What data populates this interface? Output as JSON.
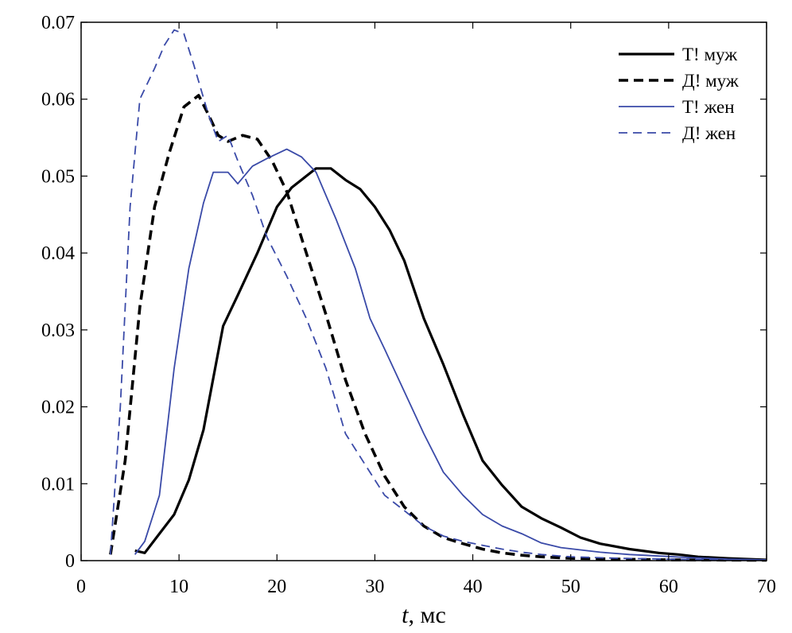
{
  "chart_data": {
    "type": "line",
    "xlabel_var": "t",
    "xlabel_unit": ", мс",
    "ylabel": "",
    "xlim": [
      0,
      70
    ],
    "ylim": [
      0,
      0.07
    ],
    "x_ticks": [
      "0",
      "10",
      "20",
      "30",
      "40",
      "50",
      "60",
      "70"
    ],
    "y_ticks": [
      "0",
      "0.01",
      "0.02",
      "0.03",
      "0.04",
      "0.05",
      "0.06",
      "0.07"
    ],
    "grid": false,
    "legend_position": "top-right",
    "series": [
      {
        "name": "Т! муж",
        "color": "#000000",
        "style": "solid-thick",
        "points": [
          [
            5.5,
            0.0013
          ],
          [
            6.5,
            0.001
          ],
          [
            8,
            0.0035
          ],
          [
            9.5,
            0.006
          ],
          [
            11,
            0.0105
          ],
          [
            12.5,
            0.017
          ],
          [
            14.5,
            0.0305
          ],
          [
            16,
            0.0345
          ],
          [
            18,
            0.04
          ],
          [
            20,
            0.046
          ],
          [
            21.5,
            0.0485
          ],
          [
            23,
            0.05
          ],
          [
            24,
            0.051
          ],
          [
            25.5,
            0.051
          ],
          [
            27,
            0.0495
          ],
          [
            28.5,
            0.0483
          ],
          [
            30,
            0.046
          ],
          [
            31.5,
            0.043
          ],
          [
            33,
            0.039
          ],
          [
            35,
            0.0315
          ],
          [
            37,
            0.0255
          ],
          [
            39,
            0.019
          ],
          [
            41,
            0.013
          ],
          [
            43,
            0.0098
          ],
          [
            45,
            0.007
          ],
          [
            47,
            0.0055
          ],
          [
            49,
            0.0043
          ],
          [
            51,
            0.003
          ],
          [
            53,
            0.0022
          ],
          [
            56,
            0.0015
          ],
          [
            59,
            0.001
          ],
          [
            61,
            0.0008
          ],
          [
            63,
            0.0005
          ],
          [
            66,
            0.0003
          ],
          [
            70,
            0.0001
          ]
        ]
      },
      {
        "name": "Д! муж",
        "color": "#000000",
        "style": "dashed-thick",
        "points": [
          [
            3,
            0.0008
          ],
          [
            4.5,
            0.013
          ],
          [
            6,
            0.033
          ],
          [
            7.5,
            0.046
          ],
          [
            9,
            0.053
          ],
          [
            10.5,
            0.059
          ],
          [
            12,
            0.0605
          ],
          [
            13,
            0.058
          ],
          [
            14,
            0.0553
          ],
          [
            15,
            0.0545
          ],
          [
            16.5,
            0.0553
          ],
          [
            18,
            0.0548
          ],
          [
            19.5,
            0.052
          ],
          [
            21,
            0.048
          ],
          [
            23,
            0.04
          ],
          [
            25,
            0.032
          ],
          [
            27,
            0.0235
          ],
          [
            29,
            0.0165
          ],
          [
            31,
            0.011
          ],
          [
            33,
            0.007
          ],
          [
            35,
            0.0045
          ],
          [
            37,
            0.003
          ],
          [
            39,
            0.0022
          ],
          [
            41,
            0.0015
          ],
          [
            43,
            0.001
          ],
          [
            45,
            0.0007
          ],
          [
            47,
            0.0005
          ],
          [
            50,
            0.0003
          ],
          [
            55,
            0.0002
          ],
          [
            60,
            0.0001
          ],
          [
            70,
            5e-05
          ]
        ]
      },
      {
        "name": "Т! жен",
        "color": "#3a4aa8",
        "style": "solid-thin",
        "points": [
          [
            5.5,
            0.0008
          ],
          [
            6.5,
            0.0025
          ],
          [
            8,
            0.0085
          ],
          [
            9.5,
            0.025
          ],
          [
            11,
            0.038
          ],
          [
            12.5,
            0.0465
          ],
          [
            13.5,
            0.0505
          ],
          [
            15,
            0.0505
          ],
          [
            16,
            0.049
          ],
          [
            17.5,
            0.0513
          ],
          [
            19,
            0.0523
          ],
          [
            21,
            0.0535
          ],
          [
            22.5,
            0.0525
          ],
          [
            24,
            0.0505
          ],
          [
            26,
            0.0445
          ],
          [
            28,
            0.038
          ],
          [
            29.5,
            0.0315
          ],
          [
            31,
            0.0275
          ],
          [
            33,
            0.022
          ],
          [
            35,
            0.0165
          ],
          [
            37,
            0.0115
          ],
          [
            39,
            0.0085
          ],
          [
            41,
            0.006
          ],
          [
            43,
            0.0045
          ],
          [
            45,
            0.0035
          ],
          [
            47,
            0.0023
          ],
          [
            49,
            0.0017
          ],
          [
            51,
            0.0014
          ],
          [
            53,
            0.0011
          ],
          [
            56,
            0.0008
          ],
          [
            59,
            0.0006
          ],
          [
            62,
            0.0004
          ],
          [
            66,
            0.0002
          ],
          [
            70,
            0.0001
          ]
        ]
      },
      {
        "name": "Д! жен",
        "color": "#3a4aa8",
        "style": "dashed-thin",
        "points": [
          [
            3,
            0.0008
          ],
          [
            4,
            0.02
          ],
          [
            5,
            0.046
          ],
          [
            6,
            0.06
          ],
          [
            7.5,
            0.064
          ],
          [
            8.5,
            0.067
          ],
          [
            9.5,
            0.069
          ],
          [
            10.5,
            0.0685
          ],
          [
            11.5,
            0.0645
          ],
          [
            13,
            0.058
          ],
          [
            14,
            0.0545
          ],
          [
            15,
            0.0553
          ],
          [
            16,
            0.052
          ],
          [
            17.5,
            0.0475
          ],
          [
            19,
            0.042
          ],
          [
            21,
            0.037
          ],
          [
            23,
            0.0315
          ],
          [
            25,
            0.025
          ],
          [
            27,
            0.0165
          ],
          [
            29,
            0.0125
          ],
          [
            31,
            0.0085
          ],
          [
            33,
            0.0065
          ],
          [
            35,
            0.0045
          ],
          [
            37,
            0.0032
          ],
          [
            39,
            0.0025
          ],
          [
            41,
            0.002
          ],
          [
            43,
            0.0015
          ],
          [
            45,
            0.0011
          ],
          [
            47,
            0.0008
          ],
          [
            50,
            0.0005
          ],
          [
            55,
            0.0003
          ],
          [
            60,
            0.0002
          ],
          [
            65,
            0.0001
          ],
          [
            70,
            5e-05
          ]
        ]
      }
    ]
  }
}
